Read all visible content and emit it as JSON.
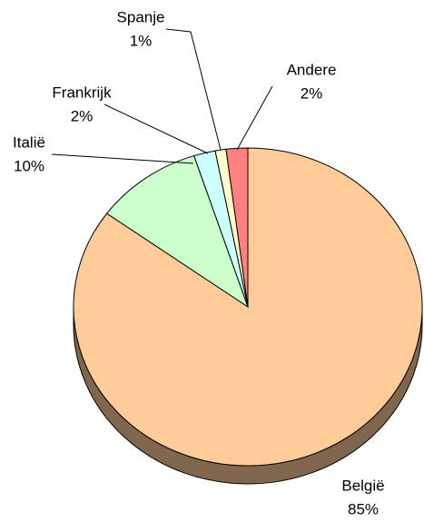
{
  "chart_data": {
    "type": "pie",
    "categories": [
      "België",
      "Italië",
      "Frankrijk",
      "Spanje",
      "Andere"
    ],
    "values": [
      85,
      10,
      2,
      1,
      2
    ],
    "value_labels": [
      "85%",
      "10%",
      "2%",
      "1%",
      "2%"
    ],
    "colors": [
      "#ffcc99",
      "#ccffcc",
      "#ccffff",
      "#ffffcc",
      "#ff8080"
    ]
  }
}
